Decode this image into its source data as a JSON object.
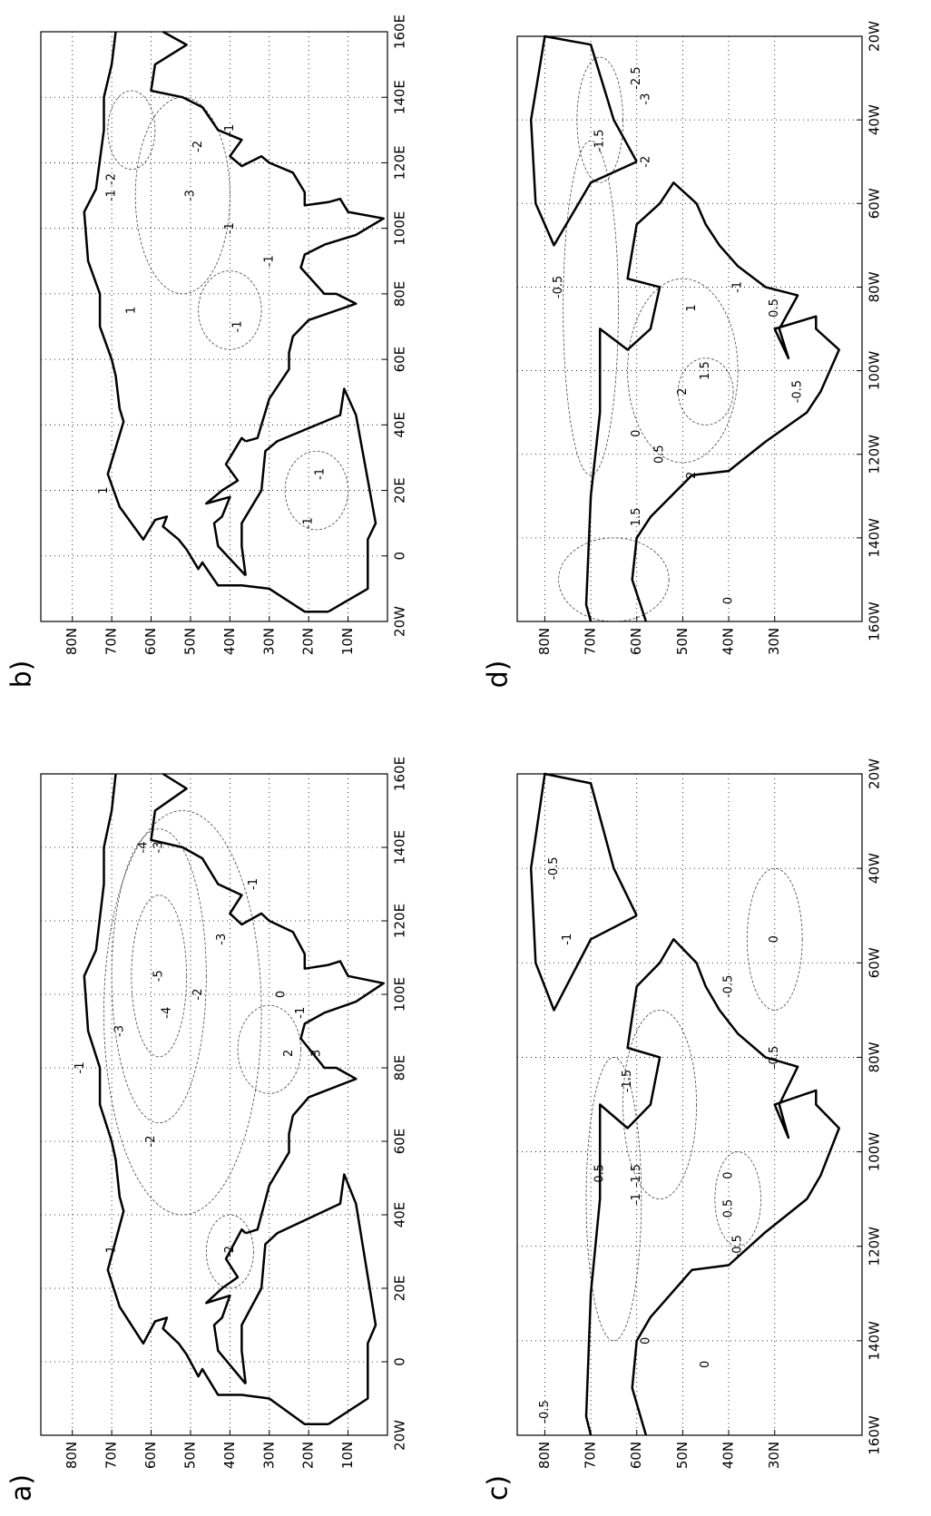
{
  "panels": [
    {
      "label": "a)",
      "lon_lim": [
        -20,
        160
      ],
      "lat_lim": [
        0,
        88
      ],
      "lon_ticks": [
        {
          "value": -20,
          "label": "20W"
        },
        0,
        {
          "value": 20,
          "label": "20E"
        },
        {
          "value": 40,
          "label": "40E"
        },
        {
          "value": 60,
          "label": "60E"
        },
        {
          "value": 80,
          "label": "80E"
        },
        {
          "value": 100,
          "label": "100E"
        },
        {
          "value": 120,
          "label": "120E"
        },
        {
          "value": 140,
          "label": "140E"
        },
        {
          "value": 160,
          "label": "160E"
        }
      ],
      "lat_ticks": [
        {
          "value": 10,
          "label": "10N"
        },
        {
          "value": 20,
          "label": "20N"
        },
        {
          "value": 30,
          "label": "30N"
        },
        {
          "value": 40,
          "label": "40N"
        },
        {
          "value": 50,
          "label": "50N"
        },
        {
          "value": 60,
          "label": "60N"
        },
        {
          "value": 70,
          "label": "70N"
        },
        {
          "value": 80,
          "label": "80N"
        }
      ],
      "contour_labels": [
        "-5",
        "-4",
        "-4",
        "-3",
        "-3",
        "-3",
        "-2",
        "-2",
        "-2",
        "-1",
        "-1",
        "-1",
        "-1",
        "2",
        "3",
        "0"
      ]
    },
    {
      "label": "b)",
      "lon_lim": [
        -20,
        160
      ],
      "lat_lim": [
        0,
        88
      ],
      "lon_ticks": [
        {
          "value": -20,
          "label": "20W"
        },
        0,
        {
          "value": 20,
          "label": "20E"
        },
        {
          "value": 40,
          "label": "40E"
        },
        {
          "value": 60,
          "label": "60E"
        },
        {
          "value": 80,
          "label": "80E"
        },
        {
          "value": 100,
          "label": "100E"
        },
        {
          "value": 120,
          "label": "120E"
        },
        {
          "value": 140,
          "label": "140E"
        },
        {
          "value": 160,
          "label": "160E"
        }
      ],
      "lat_ticks": [
        {
          "value": 10,
          "label": "10N"
        },
        {
          "value": 20,
          "label": "20N"
        },
        {
          "value": 30,
          "label": "30N"
        },
        {
          "value": 40,
          "label": "40N"
        },
        {
          "value": 50,
          "label": "50N"
        },
        {
          "value": 60,
          "label": "60N"
        },
        {
          "value": 70,
          "label": "70N"
        },
        {
          "value": 80,
          "label": "80N"
        }
      ],
      "contour_labels": [
        "-3",
        "-2",
        "-2",
        "-1",
        "-1",
        "-1",
        "-1",
        "-1",
        "1",
        "1",
        "-1",
        "-1"
      ]
    },
    {
      "label": "c)",
      "lon_lim": [
        -160,
        -20
      ],
      "lat_lim": [
        11,
        86
      ],
      "lon_ticks": [
        {
          "value": -160,
          "label": "160W"
        },
        {
          "value": -140,
          "label": "140W"
        },
        {
          "value": -120,
          "label": "120W"
        },
        {
          "value": -100,
          "label": "100W"
        },
        {
          "value": -80,
          "label": "80W"
        },
        {
          "value": -60,
          "label": "60W"
        },
        {
          "value": -40,
          "label": "40W"
        },
        {
          "value": -20,
          "label": "20W"
        }
      ],
      "lat_ticks": [
        {
          "value": 30,
          "label": "30N"
        },
        {
          "value": 40,
          "label": "40N"
        },
        {
          "value": 50,
          "label": "50N"
        },
        {
          "value": 60,
          "label": "60N"
        },
        {
          "value": 70,
          "label": "70N"
        },
        {
          "value": 80,
          "label": "80N"
        }
      ],
      "contour_labels": [
        "-0.5",
        "-0.5",
        "-0.5",
        "-0.5",
        "0",
        "0",
        "0",
        "-1",
        "-1",
        "-1.5",
        "-1.5",
        "0.5",
        "-0.5",
        "0",
        "-0.5"
      ]
    },
    {
      "label": "d)",
      "lon_lim": [
        -160,
        -20
      ],
      "lat_lim": [
        11,
        86
      ],
      "lon_ticks": [
        {
          "value": -160,
          "label": "160W"
        },
        {
          "value": -140,
          "label": "140W"
        },
        {
          "value": -120,
          "label": "120W"
        },
        {
          "value": -100,
          "label": "100W"
        },
        {
          "value": -80,
          "label": "80W"
        },
        {
          "value": -60,
          "label": "60W"
        },
        {
          "value": -40,
          "label": "40W"
        },
        {
          "value": -20,
          "label": "20W"
        }
      ],
      "lat_ticks": [
        {
          "value": 30,
          "label": "30N"
        },
        {
          "value": 40,
          "label": "40N"
        },
        {
          "value": 50,
          "label": "50N"
        },
        {
          "value": 60,
          "label": "60N"
        },
        {
          "value": 70,
          "label": "70N"
        },
        {
          "value": 80,
          "label": "80N"
        }
      ],
      "contour_labels": [
        "-0.5",
        "0",
        "0.5",
        "1",
        "1.5",
        "2",
        "-1",
        "-1.5",
        "-2",
        "-2.5",
        "-3",
        "1.5",
        "2",
        "0.5",
        "-0.5",
        "0"
      ]
    }
  ]
}
